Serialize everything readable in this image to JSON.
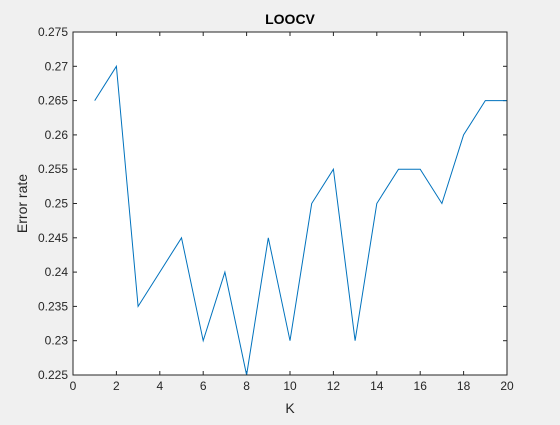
{
  "chart_data": {
    "type": "line",
    "title": "LOOCV",
    "xlabel": "K",
    "ylabel": "Error rate",
    "xlim": [
      0,
      20
    ],
    "ylim": [
      0.225,
      0.275
    ],
    "grid": false,
    "legend": "none",
    "x_ticks": [
      0,
      2,
      4,
      6,
      8,
      10,
      12,
      14,
      16,
      18,
      20
    ],
    "x_tick_labels": [
      "0",
      "2",
      "4",
      "6",
      "8",
      "10",
      "12",
      "14",
      "16",
      "18",
      "20"
    ],
    "y_ticks": [
      0.225,
      0.23,
      0.235,
      0.24,
      0.245,
      0.25,
      0.255,
      0.26,
      0.265,
      0.27,
      0.275
    ],
    "y_tick_labels": [
      "0.225",
      "0.23",
      "0.235",
      "0.24",
      "0.245",
      "0.25",
      "0.255",
      "0.26",
      "0.265",
      "0.27",
      "0.275"
    ],
    "series": [
      {
        "x": [
          1,
          2,
          3,
          4,
          5,
          6,
          7,
          8,
          9,
          10,
          11,
          12,
          13,
          14,
          15,
          16,
          17,
          18,
          19,
          20
        ],
        "y": [
          0.265,
          0.27,
          0.235,
          0.24,
          0.245,
          0.23,
          0.24,
          0.225,
          0.245,
          0.23,
          0.25,
          0.255,
          0.23,
          0.25,
          0.255,
          0.255,
          0.25,
          0.26,
          0.265,
          0.265
        ],
        "color": "#0072bd"
      }
    ]
  },
  "colors": {
    "figure_background": "#f0f0f0",
    "axes_background": "#ffffff",
    "axis_color": "#262626",
    "line": "#0072bd"
  }
}
